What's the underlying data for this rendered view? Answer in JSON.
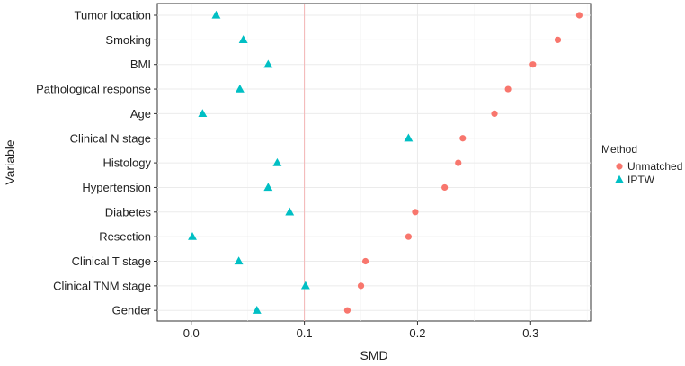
{
  "chart_data": {
    "type": "scatter",
    "title": "",
    "xlabel": "SMD",
    "ylabel": "Variable",
    "xlim": [
      -0.03,
      0.353
    ],
    "x_ticks": [
      "0.0",
      "0.1",
      "0.2",
      "0.3"
    ],
    "x_tick_values": [
      0,
      0.1,
      0.2,
      0.3
    ],
    "reference_line": 0.1,
    "grid": true,
    "legend_position": "right",
    "legend_title": "Method",
    "categories": [
      "Tumor location",
      "Smoking",
      "BMI",
      "Pathological response",
      "Age",
      "Clinical N stage",
      "Histology",
      "Hypertension",
      "Diabetes",
      "Resection",
      "Clinical T stage",
      "Clinical TNM stage",
      "Gender"
    ],
    "series": [
      {
        "name": "Unmatched",
        "marker": "circle",
        "color": "#F8766D",
        "values": [
          0.343,
          0.324,
          0.302,
          0.28,
          0.268,
          0.24,
          0.236,
          0.224,
          0.198,
          0.192,
          0.154,
          0.15,
          0.138
        ]
      },
      {
        "name": "IPTW",
        "marker": "triangle",
        "color": "#00BFC4",
        "values": [
          0.022,
          0.046,
          0.068,
          0.043,
          0.01,
          0.192,
          0.076,
          0.068,
          0.087,
          0.001,
          0.042,
          0.101,
          0.058
        ]
      }
    ]
  }
}
